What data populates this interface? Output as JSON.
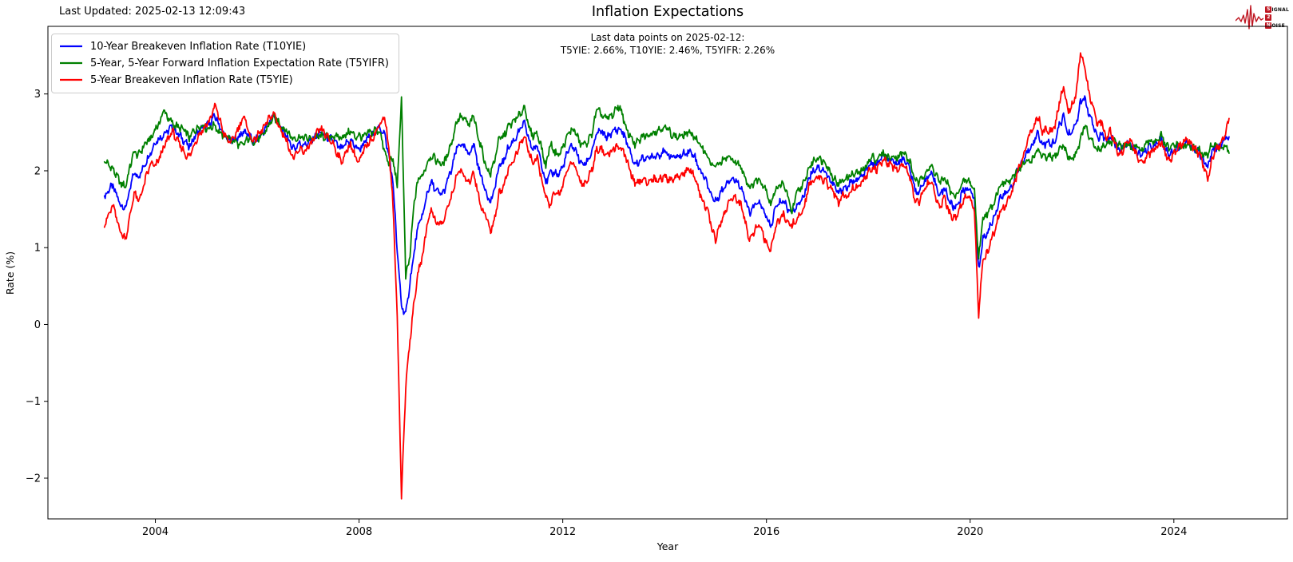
{
  "header": {
    "last_updated": "Last Updated: 2025-02-13 12:09:43",
    "title": "Inflation Expectations",
    "subtitle_line1": "Last data points on 2025-02-12:",
    "subtitle_line2": "T5YIE: 2.66%, T10YIE: 2.46%, T5YIFR: 2.26%"
  },
  "logo": {
    "color": "#bf1722",
    "rows": [
      {
        "boxed": "S",
        "rest": "IGNAL"
      },
      {
        "boxed": "2",
        "rest": ""
      },
      {
        "boxed": "N",
        "rest": "OISE"
      }
    ]
  },
  "legend": {
    "items": [
      {
        "label": "10-Year Breakeven Inflation Rate (T10YIE)",
        "color": "#0000ff"
      },
      {
        "label": "5-Year, 5-Year Forward Inflation Expectation Rate (T5YIFR)",
        "color": "#008000"
      },
      {
        "label": "5-Year Breakeven Inflation Rate (T5YIE)",
        "color": "#ff0000"
      }
    ]
  },
  "chart_data": {
    "type": "line",
    "title": "Inflation Expectations",
    "xlabel": "Year",
    "ylabel": "Rate (%)",
    "xlim": [
      2001.89,
      2026.23
    ],
    "ylim": [
      -2.53,
      3.88
    ],
    "x_ticks": [
      2004,
      2008,
      2012,
      2016,
      2020,
      2024
    ],
    "x_tick_labels": [
      "2004",
      "2008",
      "2012",
      "2016",
      "2020",
      "2024"
    ],
    "y_ticks": [
      -2,
      -1,
      0,
      1,
      2,
      3
    ],
    "y_tick_labels": [
      "−2",
      "−1",
      "0",
      "1",
      "2",
      "3"
    ],
    "grid": false,
    "legend_position": "upper left",
    "frequency": "monthly",
    "x_start_year": 2003,
    "x_start_month": 1,
    "last_data_date": "2025-02-12",
    "series": [
      {
        "name": "10-Year Breakeven Inflation Rate (T10YIE)",
        "id": "T10YIE",
        "color": "#0000ff",
        "last_value": 2.46,
        "values": [
          1.64,
          1.76,
          1.8,
          1.66,
          1.54,
          1.52,
          1.75,
          1.98,
          1.92,
          2.02,
          2.15,
          2.25,
          2.38,
          2.42,
          2.48,
          2.52,
          2.58,
          2.5,
          2.44,
          2.38,
          2.3,
          2.42,
          2.5,
          2.56,
          2.58,
          2.62,
          2.72,
          2.6,
          2.48,
          2.42,
          2.38,
          2.42,
          2.46,
          2.52,
          2.46,
          2.38,
          2.42,
          2.48,
          2.56,
          2.66,
          2.72,
          2.62,
          2.52,
          2.46,
          2.32,
          2.3,
          2.36,
          2.34,
          2.36,
          2.4,
          2.46,
          2.5,
          2.46,
          2.42,
          2.4,
          2.32,
          2.28,
          2.36,
          2.4,
          2.32,
          2.28,
          2.34,
          2.42,
          2.46,
          2.52,
          2.56,
          2.48,
          2.2,
          1.85,
          0.95,
          0.25,
          0.12,
          0.55,
          0.95,
          1.3,
          1.42,
          1.7,
          1.85,
          1.75,
          1.7,
          1.72,
          1.9,
          2.05,
          2.3,
          2.35,
          2.28,
          2.22,
          2.36,
          2.08,
          1.88,
          1.72,
          1.58,
          1.78,
          2.06,
          2.12,
          2.28,
          2.36,
          2.44,
          2.54,
          2.62,
          2.4,
          2.28,
          2.32,
          2.1,
          1.85,
          1.95,
          1.98,
          1.95,
          2.05,
          2.22,
          2.32,
          2.28,
          2.12,
          2.08,
          2.14,
          2.28,
          2.48,
          2.52,
          2.44,
          2.46,
          2.52,
          2.54,
          2.52,
          2.38,
          2.22,
          2.08,
          2.12,
          2.18,
          2.15,
          2.2,
          2.2,
          2.22,
          2.25,
          2.2,
          2.18,
          2.18,
          2.2,
          2.24,
          2.25,
          2.2,
          2.05,
          1.95,
          1.85,
          1.68,
          1.6,
          1.7,
          1.78,
          1.88,
          1.9,
          1.86,
          1.8,
          1.62,
          1.45,
          1.52,
          1.6,
          1.52,
          1.4,
          1.25,
          1.5,
          1.58,
          1.62,
          1.5,
          1.48,
          1.52,
          1.6,
          1.7,
          1.92,
          2.0,
          2.05,
          2.02,
          1.98,
          1.88,
          1.8,
          1.7,
          1.78,
          1.78,
          1.85,
          1.88,
          1.9,
          1.95,
          2.05,
          2.1,
          2.08,
          2.16,
          2.18,
          2.12,
          2.12,
          2.1,
          2.16,
          2.12,
          1.98,
          1.75,
          1.72,
          1.85,
          1.92,
          1.95,
          1.8,
          1.68,
          1.78,
          1.62,
          1.52,
          1.55,
          1.7,
          1.78,
          1.75,
          1.62,
          0.7,
          1.12,
          1.18,
          1.32,
          1.45,
          1.65,
          1.68,
          1.74,
          1.82,
          1.98,
          2.08,
          2.18,
          2.3,
          2.38,
          2.5,
          2.34,
          2.36,
          2.35,
          2.38,
          2.58,
          2.72,
          2.48,
          2.5,
          2.62,
          2.88,
          2.95,
          2.72,
          2.6,
          2.42,
          2.48,
          2.38,
          2.45,
          2.38,
          2.28,
          2.28,
          2.38,
          2.32,
          2.28,
          2.2,
          2.22,
          2.3,
          2.32,
          2.35,
          2.42,
          2.28,
          2.2,
          2.28,
          2.32,
          2.32,
          2.38,
          2.33,
          2.28,
          2.25,
          2.12,
          2.05,
          2.25,
          2.3,
          2.32,
          2.4,
          2.46
        ]
      },
      {
        "name": "5-Year, 5-Year Forward Inflation Expectation Rate (T5YIFR)",
        "id": "T5YIFR",
        "color": "#008000",
        "last_value": 2.26,
        "values": [
          2.12,
          2.08,
          2.02,
          1.92,
          1.82,
          1.8,
          2.05,
          2.25,
          2.2,
          2.3,
          2.38,
          2.42,
          2.55,
          2.62,
          2.8,
          2.68,
          2.62,
          2.58,
          2.55,
          2.52,
          2.42,
          2.52,
          2.56,
          2.6,
          2.55,
          2.56,
          2.6,
          2.5,
          2.46,
          2.44,
          2.4,
          2.38,
          2.32,
          2.36,
          2.42,
          2.38,
          2.4,
          2.44,
          2.52,
          2.62,
          2.7,
          2.64,
          2.56,
          2.52,
          2.44,
          2.42,
          2.44,
          2.43,
          2.42,
          2.42,
          2.44,
          2.45,
          2.44,
          2.44,
          2.45,
          2.44,
          2.44,
          2.47,
          2.52,
          2.44,
          2.46,
          2.43,
          2.49,
          2.5,
          2.54,
          2.5,
          2.24,
          2.1,
          2.15,
          1.8,
          2.95,
          0.6,
          0.9,
          1.6,
          1.9,
          1.94,
          2.1,
          2.2,
          2.15,
          2.1,
          2.09,
          2.25,
          2.4,
          2.65,
          2.7,
          2.66,
          2.59,
          2.72,
          2.46,
          2.26,
          2.04,
          1.96,
          2.16,
          2.42,
          2.44,
          2.56,
          2.62,
          2.68,
          2.73,
          2.85,
          2.55,
          2.46,
          2.49,
          2.3,
          2.05,
          2.35,
          2.26,
          2.2,
          2.3,
          2.44,
          2.54,
          2.51,
          2.36,
          2.34,
          2.38,
          2.51,
          2.8,
          2.74,
          2.68,
          2.7,
          2.74,
          2.85,
          2.76,
          2.51,
          2.46,
          2.34,
          2.39,
          2.46,
          2.45,
          2.5,
          2.52,
          2.54,
          2.58,
          2.52,
          2.46,
          2.44,
          2.45,
          2.48,
          2.5,
          2.45,
          2.35,
          2.3,
          2.2,
          2.08,
          2.05,
          2.1,
          2.14,
          2.18,
          2.14,
          2.1,
          2.05,
          1.92,
          1.78,
          1.84,
          1.9,
          1.84,
          1.75,
          1.55,
          1.75,
          1.81,
          1.82,
          1.68,
          1.45,
          1.69,
          1.78,
          1.85,
          2.04,
          2.12,
          2.18,
          2.14,
          2.11,
          1.98,
          1.9,
          1.82,
          1.88,
          1.91,
          1.95,
          1.96,
          1.98,
          2.02,
          2.12,
          2.18,
          2.14,
          2.22,
          2.21,
          2.16,
          2.19,
          2.18,
          2.24,
          2.19,
          2.08,
          1.88,
          1.84,
          1.95,
          2.02,
          2.05,
          1.95,
          1.84,
          1.91,
          1.79,
          1.66,
          1.7,
          1.82,
          1.88,
          1.85,
          1.74,
          0.86,
          1.39,
          1.44,
          1.52,
          1.65,
          1.82,
          1.84,
          1.86,
          1.89,
          2.01,
          2.06,
          2.11,
          2.12,
          2.18,
          2.28,
          2.18,
          2.17,
          2.18,
          2.18,
          2.28,
          2.34,
          2.18,
          2.15,
          2.24,
          2.4,
          2.6,
          2.44,
          2.35,
          2.26,
          2.31,
          2.34,
          2.38,
          2.38,
          2.34,
          2.31,
          2.34,
          2.29,
          2.31,
          2.28,
          2.29,
          2.38,
          2.39,
          2.4,
          2.46,
          2.34,
          2.28,
          2.34,
          2.34,
          2.29,
          2.34,
          2.31,
          2.28,
          2.28,
          2.19,
          2.22,
          2.35,
          2.32,
          2.29,
          2.32,
          2.26
        ]
      },
      {
        "name": "5-Year Breakeven Inflation Rate (T5YIE)",
        "id": "T5YIE",
        "color": "#ff0000",
        "last_value": 2.66,
        "values": [
          1.3,
          1.42,
          1.55,
          1.35,
          1.18,
          1.12,
          1.4,
          1.72,
          1.6,
          1.75,
          1.95,
          2.1,
          2.05,
          2.18,
          2.3,
          2.42,
          2.52,
          2.4,
          2.32,
          2.22,
          2.18,
          2.32,
          2.45,
          2.52,
          2.6,
          2.68,
          2.85,
          2.7,
          2.5,
          2.4,
          2.38,
          2.48,
          2.62,
          2.7,
          2.5,
          2.38,
          2.45,
          2.52,
          2.6,
          2.7,
          2.74,
          2.6,
          2.48,
          2.4,
          2.2,
          2.18,
          2.28,
          2.25,
          2.3,
          2.38,
          2.48,
          2.55,
          2.48,
          2.4,
          2.35,
          2.2,
          2.12,
          2.25,
          2.35,
          2.2,
          2.1,
          2.25,
          2.35,
          2.42,
          2.5,
          2.62,
          2.72,
          2.3,
          1.55,
          0.1,
          -2.24,
          -0.8,
          -0.2,
          0.3,
          0.7,
          0.9,
          1.3,
          1.5,
          1.35,
          1.3,
          1.35,
          1.55,
          1.7,
          1.95,
          2.0,
          1.9,
          1.85,
          2.0,
          1.7,
          1.5,
          1.4,
          1.2,
          1.4,
          1.7,
          1.8,
          2.0,
          2.1,
          2.2,
          2.35,
          2.45,
          2.25,
          2.1,
          2.15,
          1.9,
          1.65,
          1.55,
          1.7,
          1.7,
          1.8,
          2.0,
          2.1,
          2.05,
          1.88,
          1.82,
          1.9,
          2.05,
          2.28,
          2.3,
          2.2,
          2.22,
          2.3,
          2.32,
          2.28,
          2.15,
          1.98,
          1.82,
          1.85,
          1.9,
          1.85,
          1.9,
          1.88,
          1.9,
          1.92,
          1.88,
          1.9,
          1.92,
          1.95,
          2.0,
          2.0,
          1.95,
          1.75,
          1.6,
          1.5,
          1.28,
          1.1,
          1.3,
          1.42,
          1.58,
          1.66,
          1.62,
          1.55,
          1.32,
          1.12,
          1.2,
          1.3,
          1.2,
          1.05,
          0.95,
          1.25,
          1.35,
          1.42,
          1.32,
          1.3,
          1.35,
          1.42,
          1.55,
          1.8,
          1.88,
          1.92,
          1.9,
          1.85,
          1.78,
          1.7,
          1.58,
          1.68,
          1.65,
          1.75,
          1.8,
          1.82,
          1.88,
          1.98,
          2.02,
          2.02,
          2.1,
          2.15,
          2.08,
          2.05,
          2.02,
          2.08,
          2.05,
          1.88,
          1.62,
          1.6,
          1.75,
          1.82,
          1.85,
          1.65,
          1.52,
          1.65,
          1.45,
          1.38,
          1.4,
          1.58,
          1.68,
          1.65,
          1.5,
          0.14,
          0.85,
          0.92,
          1.12,
          1.25,
          1.48,
          1.52,
          1.62,
          1.75,
          1.95,
          2.1,
          2.25,
          2.48,
          2.58,
          2.72,
          2.5,
          2.55,
          2.52,
          2.58,
          2.88,
          3.1,
          2.78,
          2.85,
          3.02,
          3.52,
          3.35,
          3.0,
          2.85,
          2.58,
          2.65,
          2.42,
          2.52,
          2.38,
          2.22,
          2.25,
          2.42,
          2.35,
          2.25,
          2.12,
          2.15,
          2.22,
          2.25,
          2.3,
          2.38,
          2.22,
          2.12,
          2.22,
          2.3,
          2.35,
          2.42,
          2.35,
          2.28,
          2.22,
          2.05,
          1.88,
          2.15,
          2.28,
          2.35,
          2.48,
          2.66
        ]
      }
    ]
  }
}
